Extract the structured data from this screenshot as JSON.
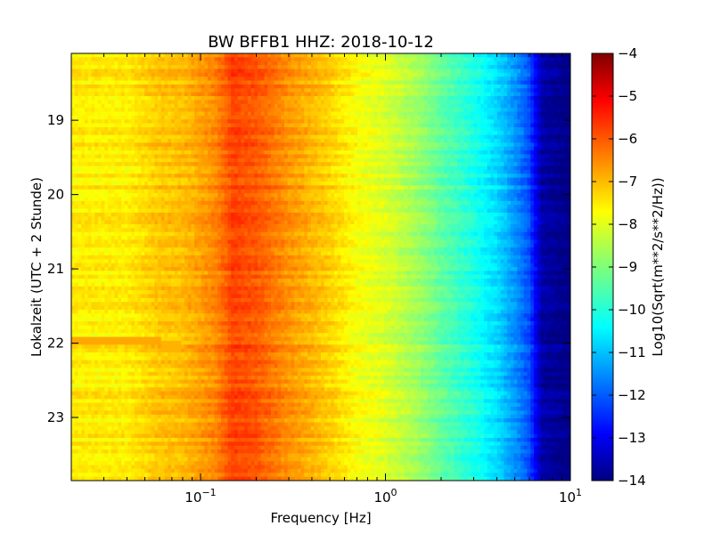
{
  "chart_data": {
    "type": "heatmap",
    "title": "BW BFFB1 HHZ: 2018-10-12",
    "xlabel": "Frequency [Hz]",
    "ylabel": "Lokalzeit (UTC + 2 Stunde)",
    "x_scale": "log",
    "xlim": [
      0.02,
      10
    ],
    "ylim": [
      18.1,
      23.85
    ],
    "y_inverted": true,
    "x_ticks": [
      {
        "value": 0.1,
        "base": "10",
        "exp": "−1"
      },
      {
        "value": 1,
        "base": "10",
        "exp": "0"
      },
      {
        "value": 10,
        "base": "10",
        "exp": "1"
      }
    ],
    "y_ticks": [
      {
        "value": 19,
        "label": "19"
      },
      {
        "value": 20,
        "label": "20"
      },
      {
        "value": 21,
        "label": "21"
      },
      {
        "value": 22,
        "label": "22"
      },
      {
        "value": 23,
        "label": "23"
      }
    ],
    "colorbar": {
      "label": "Log10(Sqrt(m**2/s**2/Hz))",
      "range": [
        -14,
        -4
      ],
      "ticks": [
        "−4",
        "−5",
        "−6",
        "−7",
        "−8",
        "−9",
        "−10",
        "−11",
        "−12",
        "−13",
        "−14"
      ],
      "colormap": "jet"
    },
    "frequency_profile": [
      {
        "freq": 0.02,
        "value": -7.6
      },
      {
        "freq": 0.04,
        "value": -7.6
      },
      {
        "freq": 0.06,
        "value": -7.2
      },
      {
        "freq": 0.08,
        "value": -7.1
      },
      {
        "freq": 0.12,
        "value": -6.6
      },
      {
        "freq": 0.15,
        "value": -5.9
      },
      {
        "freq": 0.2,
        "value": -6.1
      },
      {
        "freq": 0.3,
        "value": -6.7
      },
      {
        "freq": 0.5,
        "value": -7.3
      },
      {
        "freq": 0.7,
        "value": -7.8
      },
      {
        "freq": 1.0,
        "value": -8.1
      },
      {
        "freq": 1.5,
        "value": -8.7
      },
      {
        "freq": 2.0,
        "value": -9.3
      },
      {
        "freq": 3.0,
        "value": -10.0
      },
      {
        "freq": 4.0,
        "value": -10.6
      },
      {
        "freq": 5.0,
        "value": -11.3
      },
      {
        "freq": 6.0,
        "value": -12.0
      },
      {
        "freq": 7.0,
        "value": -13.6
      },
      {
        "freq": 10.0,
        "value": -14.0
      }
    ],
    "events": [
      {
        "time_start": 21.9,
        "time_end": 22.0,
        "freq_min": 0.02,
        "freq_max": 0.06,
        "value": -6.9
      },
      {
        "time_start": 21.95,
        "time_end": 22.1,
        "freq_min": 0.06,
        "freq_max": 0.08,
        "value": -7.0
      }
    ]
  }
}
